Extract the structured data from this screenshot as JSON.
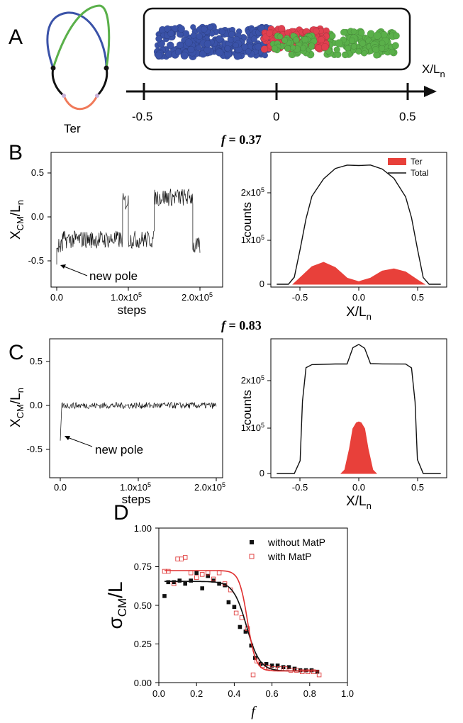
{
  "panel_letters": {
    "A": "A",
    "B": "B",
    "C": "C",
    "D": "D"
  },
  "panelA": {
    "ter_label": "Ter",
    "axis_label_main": "X/L",
    "axis_label_sub": "n",
    "ticks": [
      "-0.5",
      "0",
      "0.5"
    ],
    "colors": {
      "blue": "#3a52a8",
      "green": "#5ab04a",
      "orange": "#f07a5a",
      "black": "#111111",
      "red": "#e04050"
    }
  },
  "panelB": {
    "title_f": "f",
    "title_val": " = 0.37",
    "annotation": "new pole",
    "left_ylabel_main": "X",
    "left_ylabel_sub1": "CM",
    "left_ylabel_mid": "/L",
    "left_ylabel_sub2": "n",
    "left_xlabel": "steps",
    "left_xticks": [
      "0.0",
      "1.0x10",
      "2.0x10"
    ],
    "left_yticks": [
      "0.5",
      "0.0",
      "-0.5"
    ],
    "right_ylabel": "counts",
    "right_xlabel_main": "X/L",
    "right_xlabel_sub": "n",
    "right_xticks": [
      "-0.5",
      "0.0",
      "0.5"
    ],
    "right_yticks": [
      "2x10",
      "1x10",
      "0"
    ],
    "legend": {
      "ter": "Ter",
      "total": "Total"
    }
  },
  "panelC": {
    "title_f": "f",
    "title_val": " = 0.83",
    "annotation": "new pole",
    "left_xlabel": "steps",
    "left_xticks": [
      "0.0",
      "1.0x10",
      "2.0x10"
    ],
    "left_yticks": [
      "0.5",
      "0.0",
      "-0.5"
    ],
    "right_ylabel": "counts",
    "right_xticks": [
      "-0.5",
      "0.0",
      "0.5"
    ],
    "right_yticks": [
      "2x10",
      "1x10",
      "0"
    ]
  },
  "panelD": {
    "ylabel_main": "σ",
    "ylabel_sub": "CM",
    "ylabel_tail": "/L",
    "xlabel": "f",
    "xticks": [
      "0.0",
      "0.2",
      "0.4",
      "0.6",
      "0.8",
      "1.0"
    ],
    "yticks": [
      "1.00",
      "0.75",
      "0.50",
      "0.25",
      "0.00"
    ],
    "legend_without": "without MatP",
    "legend_with": "with MatP"
  },
  "exponent": "5",
  "chart_data": [
    {
      "id": "B_left",
      "type": "line",
      "x_range": [
        0,
        200000
      ],
      "ylim": [
        -0.75,
        0.75
      ],
      "segments": [
        {
          "x": [
            0,
            8000
          ],
          "mean": -0.3
        },
        {
          "x": [
            8000,
            92000
          ],
          "mean": -0.22
        },
        {
          "x": [
            92000,
            100000
          ],
          "mean": 0.2
        },
        {
          "x": [
            100000,
            136000
          ],
          "mean": -0.22
        },
        {
          "x": [
            136000,
            190000
          ],
          "mean": 0.25
        },
        {
          "x": [
            190000,
            200000
          ],
          "mean": -0.3
        }
      ],
      "start_value": -0.5
    },
    {
      "id": "B_right",
      "type": "area",
      "xlim": [
        -0.75,
        0.75
      ],
      "ylim": [
        0,
        300000
      ],
      "series": [
        {
          "name": "Total",
          "x": [
            -0.7,
            -0.6,
            -0.55,
            -0.5,
            -0.45,
            -0.4,
            -0.3,
            -0.2,
            -0.1,
            0.0,
            0.1,
            0.2,
            0.3,
            0.4,
            0.45,
            0.5,
            0.55,
            0.6,
            0.7
          ],
          "y": [
            0,
            0,
            15000,
            80000,
            150000,
            200000,
            240000,
            262000,
            270000,
            270000,
            270000,
            262000,
            240000,
            200000,
            150000,
            80000,
            15000,
            0,
            0
          ]
        },
        {
          "name": "Ter",
          "x": [
            -0.56,
            -0.5,
            -0.4,
            -0.3,
            -0.2,
            -0.1,
            0.0,
            0.1,
            0.2,
            0.3,
            0.4,
            0.5,
            0.56
          ],
          "y": [
            0,
            15000,
            40000,
            50000,
            38000,
            14000,
            6000,
            14000,
            30000,
            35000,
            28000,
            10000,
            0
          ]
        }
      ]
    },
    {
      "id": "C_left",
      "type": "line",
      "x_range": [
        0,
        200000
      ],
      "ylim": [
        -0.75,
        0.75
      ],
      "segments": [
        {
          "x": [
            2000,
            200000
          ],
          "mean": 0.03
        }
      ],
      "start_value": -0.35
    },
    {
      "id": "C_right",
      "type": "area",
      "xlim": [
        -0.75,
        0.75
      ],
      "ylim": [
        0,
        300000
      ],
      "series": [
        {
          "name": "Total",
          "x": [
            -0.7,
            -0.55,
            -0.5,
            -0.48,
            -0.45,
            -0.4,
            -0.2,
            -0.1,
            -0.05,
            0.0,
            0.05,
            0.1,
            0.2,
            0.4,
            0.45,
            0.48,
            0.5,
            0.55,
            0.7
          ],
          "y": [
            0,
            0,
            30000,
            160000,
            235000,
            243000,
            243000,
            245000,
            280000,
            287000,
            280000,
            245000,
            243000,
            243000,
            235000,
            160000,
            30000,
            0,
            0
          ]
        },
        {
          "name": "Ter",
          "x": [
            -0.15,
            -0.12,
            -0.08,
            -0.05,
            -0.02,
            0.0,
            0.02,
            0.05,
            0.08,
            0.12,
            0.15
          ],
          "y": [
            0,
            8000,
            55000,
            100000,
            113000,
            115000,
            113000,
            100000,
            55000,
            8000,
            0
          ]
        }
      ]
    },
    {
      "id": "D",
      "type": "scatter",
      "xlim": [
        0.0,
        1.0
      ],
      "ylim": [
        0.0,
        1.0
      ],
      "series": [
        {
          "name": "without MatP",
          "x": [
            0.03,
            0.05,
            0.08,
            0.11,
            0.14,
            0.17,
            0.2,
            0.23,
            0.26,
            0.29,
            0.32,
            0.35,
            0.37,
            0.4,
            0.43,
            0.46,
            0.49,
            0.51,
            0.54,
            0.57,
            0.6,
            0.63,
            0.66,
            0.69,
            0.72,
            0.75,
            0.78,
            0.81,
            0.84
          ],
          "y": [
            0.56,
            0.65,
            0.65,
            0.66,
            0.64,
            0.66,
            0.71,
            0.61,
            0.69,
            0.66,
            0.64,
            0.63,
            0.52,
            0.49,
            0.36,
            0.33,
            0.24,
            0.16,
            0.12,
            0.12,
            0.11,
            0.11,
            0.1,
            0.1,
            0.09,
            0.08,
            0.08,
            0.08,
            0.07
          ]
        },
        {
          "name": "with MatP",
          "x": [
            0.03,
            0.05,
            0.08,
            0.1,
            0.12,
            0.14,
            0.17,
            0.2,
            0.23,
            0.26,
            0.29,
            0.32,
            0.35,
            0.38,
            0.41,
            0.44,
            0.47,
            0.5,
            0.52,
            0.55,
            0.58,
            0.61,
            0.64,
            0.67,
            0.7,
            0.73,
            0.76,
            0.79,
            0.82,
            0.85
          ],
          "y": [
            0.72,
            0.72,
            0.64,
            0.8,
            0.8,
            0.81,
            0.71,
            0.68,
            0.7,
            0.71,
            0.67,
            0.71,
            0.64,
            0.6,
            0.45,
            0.42,
            0.35,
            0.05,
            0.14,
            0.11,
            0.1,
            0.09,
            0.09,
            0.09,
            0.08,
            0.08,
            0.07,
            0.07,
            0.07,
            0.05
          ]
        }
      ],
      "fits": [
        {
          "series": "without MatP",
          "plateau": 0.655,
          "floor": 0.075,
          "center": 0.465,
          "width": 0.035
        },
        {
          "series": "with MatP",
          "plateau": 0.725,
          "floor": 0.075,
          "center": 0.47,
          "width": 0.022
        }
      ]
    }
  ]
}
